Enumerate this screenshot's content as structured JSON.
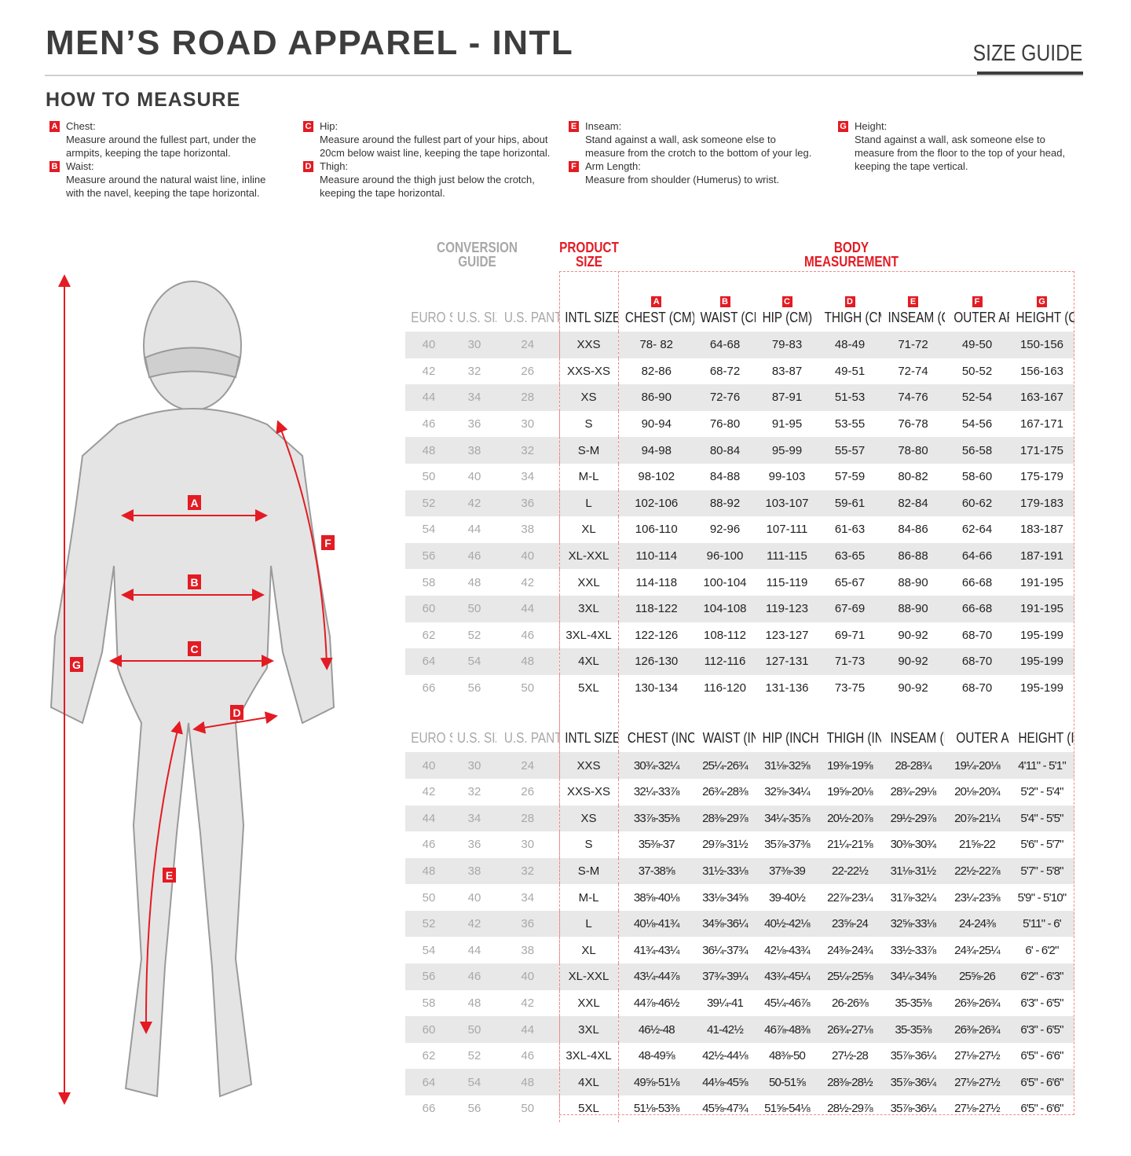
{
  "header": {
    "title": "MEN’S ROAD APPAREL - INTL",
    "size_guide": "SIZE GUIDE"
  },
  "how_to": {
    "title": "HOW TO MEASURE",
    "items": [
      {
        "letter": "A",
        "label": "Chest:",
        "text": "Measure around the fullest part, under the armpits, keeping the tape horizontal."
      },
      {
        "letter": "B",
        "label": "Waist:",
        "text": "Measure around the natural waist line, inline with the navel, keeping the tape horizontal."
      },
      {
        "letter": "C",
        "label": "Hip:",
        "text": "Measure around the fullest part of your hips, about 20cm below waist line, keeping the tape horizontal."
      },
      {
        "letter": "D",
        "label": "Thigh:",
        "text": "Measure around the thigh just below the crotch, keeping the tape horizontal."
      },
      {
        "letter": "E",
        "label": "Inseam:",
        "text": "Stand against a wall, ask someone else to measure from the crotch to the bottom of your leg."
      },
      {
        "letter": "F",
        "label": "Arm Length:",
        "text": "Measure from shoulder (Humerus) to wrist."
      },
      {
        "letter": "G",
        "label": "Height:",
        "text": "Stand against a wall, ask someone else to measure from the floor to the top of your head, keeping the tape vertical."
      }
    ]
  },
  "colors": {
    "accent": "#e31b23",
    "title": "#3d3d3d",
    "conversion": "#a8a8a8",
    "row_shade": "#e8e8e8"
  },
  "table": {
    "group_conversion": "CONVERSION GUIDE",
    "group_product": "PRODUCT SIZE",
    "group_body": "BODY MEASUREMENT",
    "letters": [
      "A",
      "B",
      "C",
      "D",
      "E",
      "F",
      "G"
    ],
    "cm_headers": [
      "EURO SIZE",
      "U.S. SIZE",
      "U.S. PANT SIZE",
      "INTL SIZE",
      "CHEST (CM)",
      "WAIST (CM)",
      "HIP (CM)",
      "THIGH (CM)",
      "INSEAM (CM)",
      "OUTER ARM (CM)",
      "HEIGHT (CM)"
    ],
    "inch_headers": [
      "EURO SIZE",
      "U.S. SIZE",
      "U.S. PANT SIZE",
      "INTL SIZE",
      "CHEST (INCHES)",
      "WAIST (INCHES)",
      "HIP (INCHES)",
      "THIGH (INCHES)",
      "INSEAM (INCHES)",
      "OUTER ARM (INCHES)",
      "HEIGHT (INCHES)"
    ],
    "cm_rows": [
      [
        "40",
        "30",
        "24",
        "XXS",
        "78- 82",
        "64-68",
        "79-83",
        "48-49",
        "71-72",
        "49-50",
        "150-156"
      ],
      [
        "42",
        "32",
        "26",
        "XXS-XS",
        "82-86",
        "68-72",
        "83-87",
        "49-51",
        "72-74",
        "50-52",
        "156-163"
      ],
      [
        "44",
        "34",
        "28",
        "XS",
        "86-90",
        "72-76",
        "87-91",
        "51-53",
        "74-76",
        "52-54",
        "163-167"
      ],
      [
        "46",
        "36",
        "30",
        "S",
        "90-94",
        "76-80",
        "91-95",
        "53-55",
        "76-78",
        "54-56",
        "167-171"
      ],
      [
        "48",
        "38",
        "32",
        "S-M",
        "94-98",
        "80-84",
        "95-99",
        "55-57",
        "78-80",
        "56-58",
        "171-175"
      ],
      [
        "50",
        "40",
        "34",
        "M-L",
        "98-102",
        "84-88",
        "99-103",
        "57-59",
        "80-82",
        "58-60",
        "175-179"
      ],
      [
        "52",
        "42",
        "36",
        "L",
        "102-106",
        "88-92",
        "103-107",
        "59-61",
        "82-84",
        "60-62",
        "179-183"
      ],
      [
        "54",
        "44",
        "38",
        "XL",
        "106-110",
        "92-96",
        "107-111",
        "61-63",
        "84-86",
        "62-64",
        "183-187"
      ],
      [
        "56",
        "46",
        "40",
        "XL-XXL",
        "110-114",
        "96-100",
        "111-115",
        "63-65",
        "86-88",
        "64-66",
        "187-191"
      ],
      [
        "58",
        "48",
        "42",
        "XXL",
        "114-118",
        "100-104",
        "115-119",
        "65-67",
        "88-90",
        "66-68",
        "191-195"
      ],
      [
        "60",
        "50",
        "44",
        "3XL",
        "118-122",
        "104-108",
        "119-123",
        "67-69",
        "88-90",
        "66-68",
        "191-195"
      ],
      [
        "62",
        "52",
        "46",
        "3XL-4XL",
        "122-126",
        "108-112",
        "123-127",
        "69-71",
        "90-92",
        "68-70",
        "195-199"
      ],
      [
        "64",
        "54",
        "48",
        "4XL",
        "126-130",
        "112-116",
        "127-131",
        "71-73",
        "90-92",
        "68-70",
        "195-199"
      ],
      [
        "66",
        "56",
        "50",
        "5XL",
        "130-134",
        "116-120",
        "131-136",
        "73-75",
        "90-92",
        "68-70",
        "195-199"
      ]
    ],
    "inch_rows": [
      [
        "40",
        "30",
        "24",
        "XXS",
        "30¾-32¼",
        "25¼-26¾",
        "31⅛-32⅝",
        "19⅜-19⅝",
        "28-28¾",
        "19¼-20⅛",
        "4'11\" - 5'1\""
      ],
      [
        "42",
        "32",
        "26",
        "XXS-XS",
        "32¼-33⅞",
        "26¾-28⅜",
        "32⅝-34¼",
        "19⅝-20⅛",
        "28¾-29⅛",
        "20⅛-20¾",
        "5'2\" - 5'4\""
      ],
      [
        "44",
        "34",
        "28",
        "XS",
        "33⅞-35⅜",
        "28⅜-29⅞",
        "34¼-35⅞",
        "20½-20⅞",
        "29½-29⅞",
        "20⅞-21¼",
        "5'4\" - 5'5\""
      ],
      [
        "46",
        "36",
        "30",
        "S",
        "35⅜-37",
        "29⅞-31½",
        "35⅞-37⅜",
        "21¼-21⅝",
        "30⅜-30¾",
        "21⅝-22",
        "5'6\" - 5'7\""
      ],
      [
        "48",
        "38",
        "32",
        "S-M",
        "37-38⅝",
        "31½-33⅛",
        "37⅜-39",
        "22-22½",
        "31⅛-31½",
        "22½-22⅞",
        "5'7\" - 5'8\""
      ],
      [
        "50",
        "40",
        "34",
        "M-L",
        "38⅝-40⅛",
        "33⅛-34⅝",
        "39-40½",
        "22⅞-23¼",
        "31⅞-32¼",
        "23¼-23⅝",
        "5'9\" - 5'10\""
      ],
      [
        "52",
        "42",
        "36",
        "L",
        "40⅛-41¾",
        "34⅝-36¼",
        "40½-42⅛",
        "23⅝-24",
        "32⅝-33⅛",
        "24-24⅜",
        "5'11\" - 6'"
      ],
      [
        "54",
        "44",
        "38",
        "XL",
        "41¾-43¼",
        "36¼-37¾",
        "42⅛-43¾",
        "24⅜-24¾",
        "33½-33⅞",
        "24¾-25¼",
        "6' - 6'2\""
      ],
      [
        "56",
        "46",
        "40",
        "XL-XXL",
        "43¼-44⅞",
        "37¾-39¼",
        "43¾-45¼",
        "25¼-25⅝",
        "34¼-34⅝",
        "25⅝-26",
        "6'2\" - 6'3\""
      ],
      [
        "58",
        "48",
        "42",
        "XXL",
        "44⅞-46½",
        "39¼-41",
        "45¼-46⅞",
        "26-26⅜",
        "35-35⅜",
        "26⅜-26¾",
        "6'3\" - 6'5\""
      ],
      [
        "60",
        "50",
        "44",
        "3XL",
        "46½-48",
        "41-42½",
        "46⅞-48⅜",
        "26¾-27⅛",
        "35-35⅜",
        "26⅜-26¾",
        "6'3\" - 6'5\""
      ],
      [
        "62",
        "52",
        "46",
        "3XL-4XL",
        "48-49⅝",
        "42½-44⅛",
        "48⅜-50",
        "27½-28",
        "35⅞-36¼",
        "27⅛-27½",
        "6'5\" - 6'6\""
      ],
      [
        "64",
        "54",
        "48",
        "4XL",
        "49⅝-51⅛",
        "44⅛-45⅝",
        "50-51⅝",
        "28⅜-28½",
        "35⅞-36¼",
        "27⅛-27½",
        "6'5\" - 6'6\""
      ],
      [
        "66",
        "56",
        "50",
        "5XL",
        "51⅛-53⅜",
        "45⅝-47¾",
        "51⅝-54⅛",
        "28½-29⅞",
        "35⅞-36¼",
        "27⅛-27½",
        "6'5\" - 6'6\""
      ]
    ]
  }
}
